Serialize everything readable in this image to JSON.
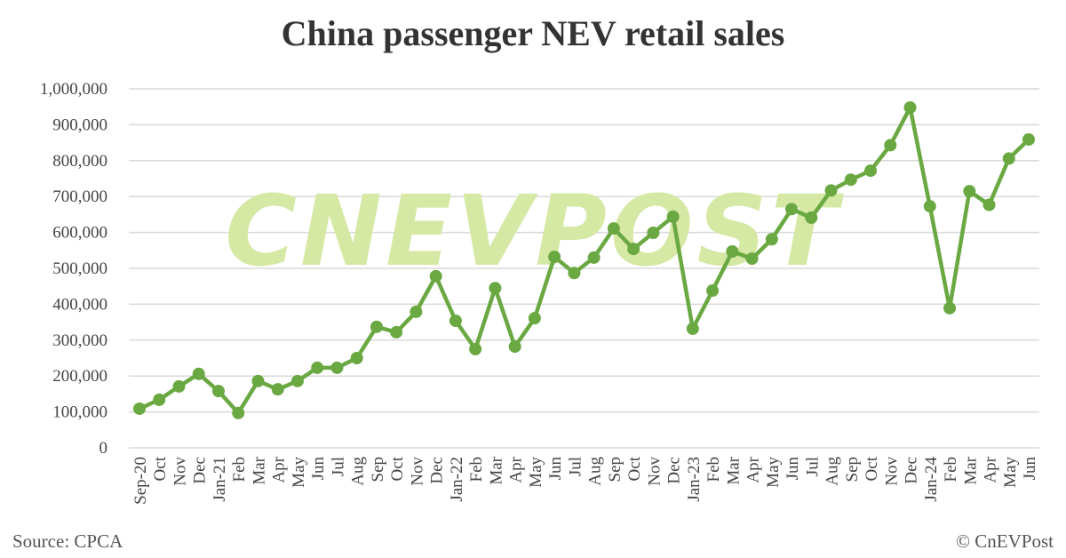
{
  "chart_data": {
    "type": "line",
    "title": "China passenger NEV retail sales",
    "xlabel": "",
    "ylabel": "",
    "ylim": [
      0,
      1000000
    ],
    "yticks": [
      "0",
      "100,000",
      "200,000",
      "300,000",
      "400,000",
      "500,000",
      "600,000",
      "700,000",
      "800,000",
      "900,000",
      "1,000,000"
    ],
    "grid": true,
    "legend": "none",
    "line_color": "#6aa842",
    "categories": [
      "Sep-20",
      "Oct",
      "Nov",
      "Dec",
      "Jan-21",
      "Feb",
      "Mar",
      "Apr",
      "May",
      "Jun",
      "Jul",
      "Aug",
      "Sep",
      "Oct",
      "Nov",
      "Dec",
      "Jan-22",
      "Feb",
      "Mar",
      "Apr",
      "May",
      "Jun",
      "Jul",
      "Aug",
      "Sep",
      "Oct",
      "Nov",
      "Dec",
      "Jan-23",
      "Feb",
      "Mar",
      "Apr",
      "May",
      "Jun",
      "Jul",
      "Aug",
      "Sep",
      "Oct",
      "Nov",
      "Dec",
      "Jan-24",
      "Feb",
      "Mar",
      "Apr",
      "May",
      "Jun"
    ],
    "values": [
      109000,
      134000,
      171000,
      206000,
      158000,
      97000,
      186000,
      163000,
      186000,
      223000,
      223000,
      250000,
      337000,
      322000,
      379000,
      478000,
      354000,
      275000,
      445000,
      282000,
      361000,
      532000,
      487000,
      530000,
      611000,
      554000,
      599000,
      644000,
      332000,
      438000,
      547000,
      527000,
      581000,
      665000,
      641000,
      717000,
      747000,
      772000,
      843000,
      948000,
      673000,
      389000,
      715000,
      677000,
      806000,
      859000
    ]
  },
  "watermark": "CNEVPOST",
  "source": "Source: CPCA",
  "copyright": "© CnEVPost"
}
